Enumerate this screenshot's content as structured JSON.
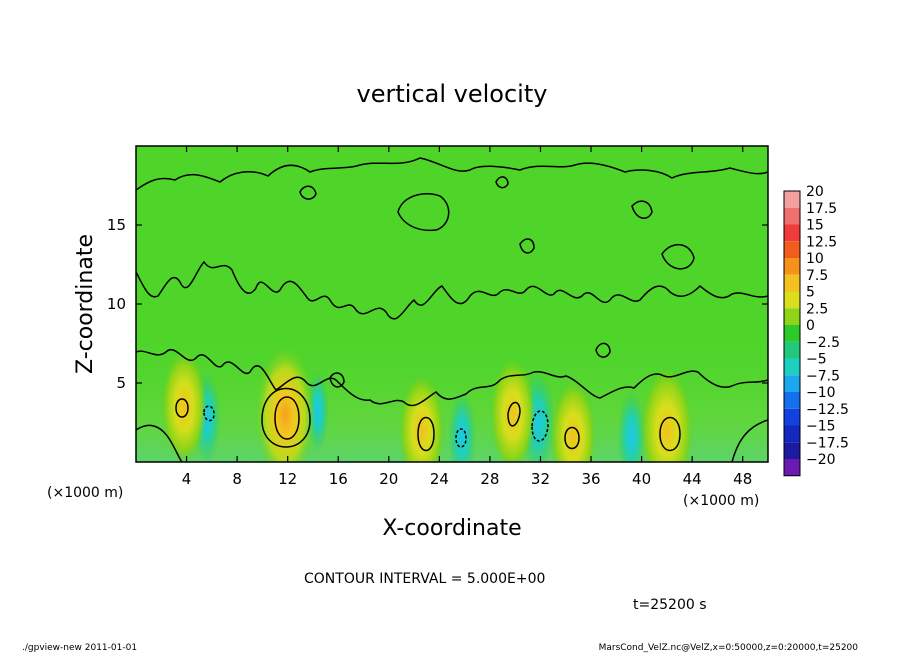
{
  "chart_data": {
    "type": "heatmap",
    "title": "vertical velocity",
    "xlabel": "X-coordinate",
    "ylabel": "Z-coordinate",
    "x_unit_label": "(×1000 m)",
    "y_unit_label": "(×1000 m)",
    "xlim": [
      0,
      50
    ],
    "ylim": [
      0,
      20
    ],
    "x_ticks": [
      4,
      8,
      12,
      16,
      20,
      24,
      28,
      32,
      36,
      40,
      44,
      48
    ],
    "y_ticks": [
      5,
      10,
      15
    ],
    "grid": false,
    "colorbar": {
      "labels": [
        "20",
        "17.5",
        "15",
        "12.5",
        "10",
        "7.5",
        "5",
        "2.5",
        "0",
        "−2.5",
        "−5",
        "−7.5",
        "−10",
        "−12.5",
        "−15",
        "−17.5",
        "−20"
      ],
      "colors": [
        "#f4a0a0",
        "#f07070",
        "#ef3b3b",
        "#f25c1f",
        "#f6911c",
        "#f4c11e",
        "#d9df1c",
        "#8ed518",
        "#2dc829",
        "#24c87c",
        "#1fd0c0",
        "#1ca8ee",
        "#1670ee",
        "#1440e0",
        "#1428c0",
        "#1c1aa0",
        "#6a1ab0"
      ]
    },
    "updrafts": [
      {
        "x": 3.8,
        "z": 3.5,
        "peak": 5.0
      },
      {
        "x": 11.8,
        "z": 3.0,
        "peak": 10.0
      },
      {
        "x": 22.6,
        "z": 2.0,
        "peak": 5.0
      },
      {
        "x": 29.8,
        "z": 3.0,
        "peak": 5.0
      },
      {
        "x": 34.6,
        "z": 1.6,
        "peak": 5.0
      },
      {
        "x": 42.0,
        "z": 2.0,
        "peak": 7.5
      }
    ],
    "downdrafts": [
      {
        "x": 5.6,
        "z": 2.8,
        "peak": -5.0
      },
      {
        "x": 14.4,
        "z": 3.2,
        "peak": -2.5
      },
      {
        "x": 25.8,
        "z": 1.6,
        "peak": -5.0
      },
      {
        "x": 31.8,
        "z": 2.5,
        "peak": -7.5
      },
      {
        "x": 39.2,
        "z": 1.6,
        "peak": -5.0
      }
    ],
    "annotations": {
      "contour_interval": "CONTOUR INTERVAL = 5.000E+00",
      "time": "t=25200 s"
    }
  },
  "footer": {
    "left": "./gpview-new   2011-01-01",
    "right": "MarsCond_VelZ.nc@VelZ,x=0:50000,z=0:20000,t=25200"
  }
}
